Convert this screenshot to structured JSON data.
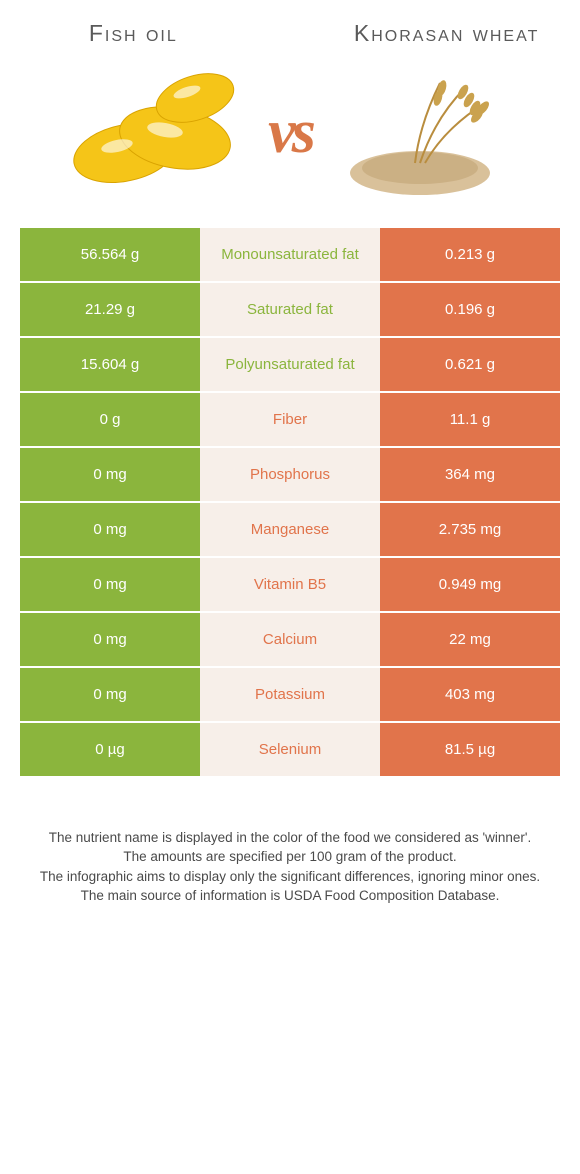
{
  "header": {
    "left_title": "Fish oil",
    "right_title": "Khorasan wheat",
    "vs_label": "vs"
  },
  "colors": {
    "green": "#8bb53d",
    "orange": "#e1744b",
    "mid_bg": "#f7efe9",
    "text_gray": "#5a5a5a",
    "white": "#ffffff"
  },
  "rows": [
    {
      "left": "56.564 g",
      "label": "Monounsaturated fat",
      "right": "0.213 g",
      "winner": "left"
    },
    {
      "left": "21.29 g",
      "label": "Saturated fat",
      "right": "0.196 g",
      "winner": "left"
    },
    {
      "left": "15.604 g",
      "label": "Polyunsaturated fat",
      "right": "0.621 g",
      "winner": "left"
    },
    {
      "left": "0 g",
      "label": "Fiber",
      "right": "11.1 g",
      "winner": "right"
    },
    {
      "left": "0 mg",
      "label": "Phosphorus",
      "right": "364 mg",
      "winner": "right"
    },
    {
      "left": "0 mg",
      "label": "Manganese",
      "right": "2.735 mg",
      "winner": "right"
    },
    {
      "left": "0 mg",
      "label": "Vitamin B5",
      "right": "0.949 mg",
      "winner": "right"
    },
    {
      "left": "0 mg",
      "label": "Calcium",
      "right": "22 mg",
      "winner": "right"
    },
    {
      "left": "0 mg",
      "label": "Potassium",
      "right": "403 mg",
      "winner": "right"
    },
    {
      "left": "0 µg",
      "label": "Selenium",
      "right": "81.5 µg",
      "winner": "right"
    }
  ],
  "footer": {
    "line1": "The nutrient name is displayed in the color of the food we considered as 'winner'.",
    "line2": "The amounts are specified per 100 gram of the product.",
    "line3": "The infographic aims to display only the significant differences, ignoring minor ones.",
    "line4": "The main source of information is USDA Food Composition Database."
  }
}
